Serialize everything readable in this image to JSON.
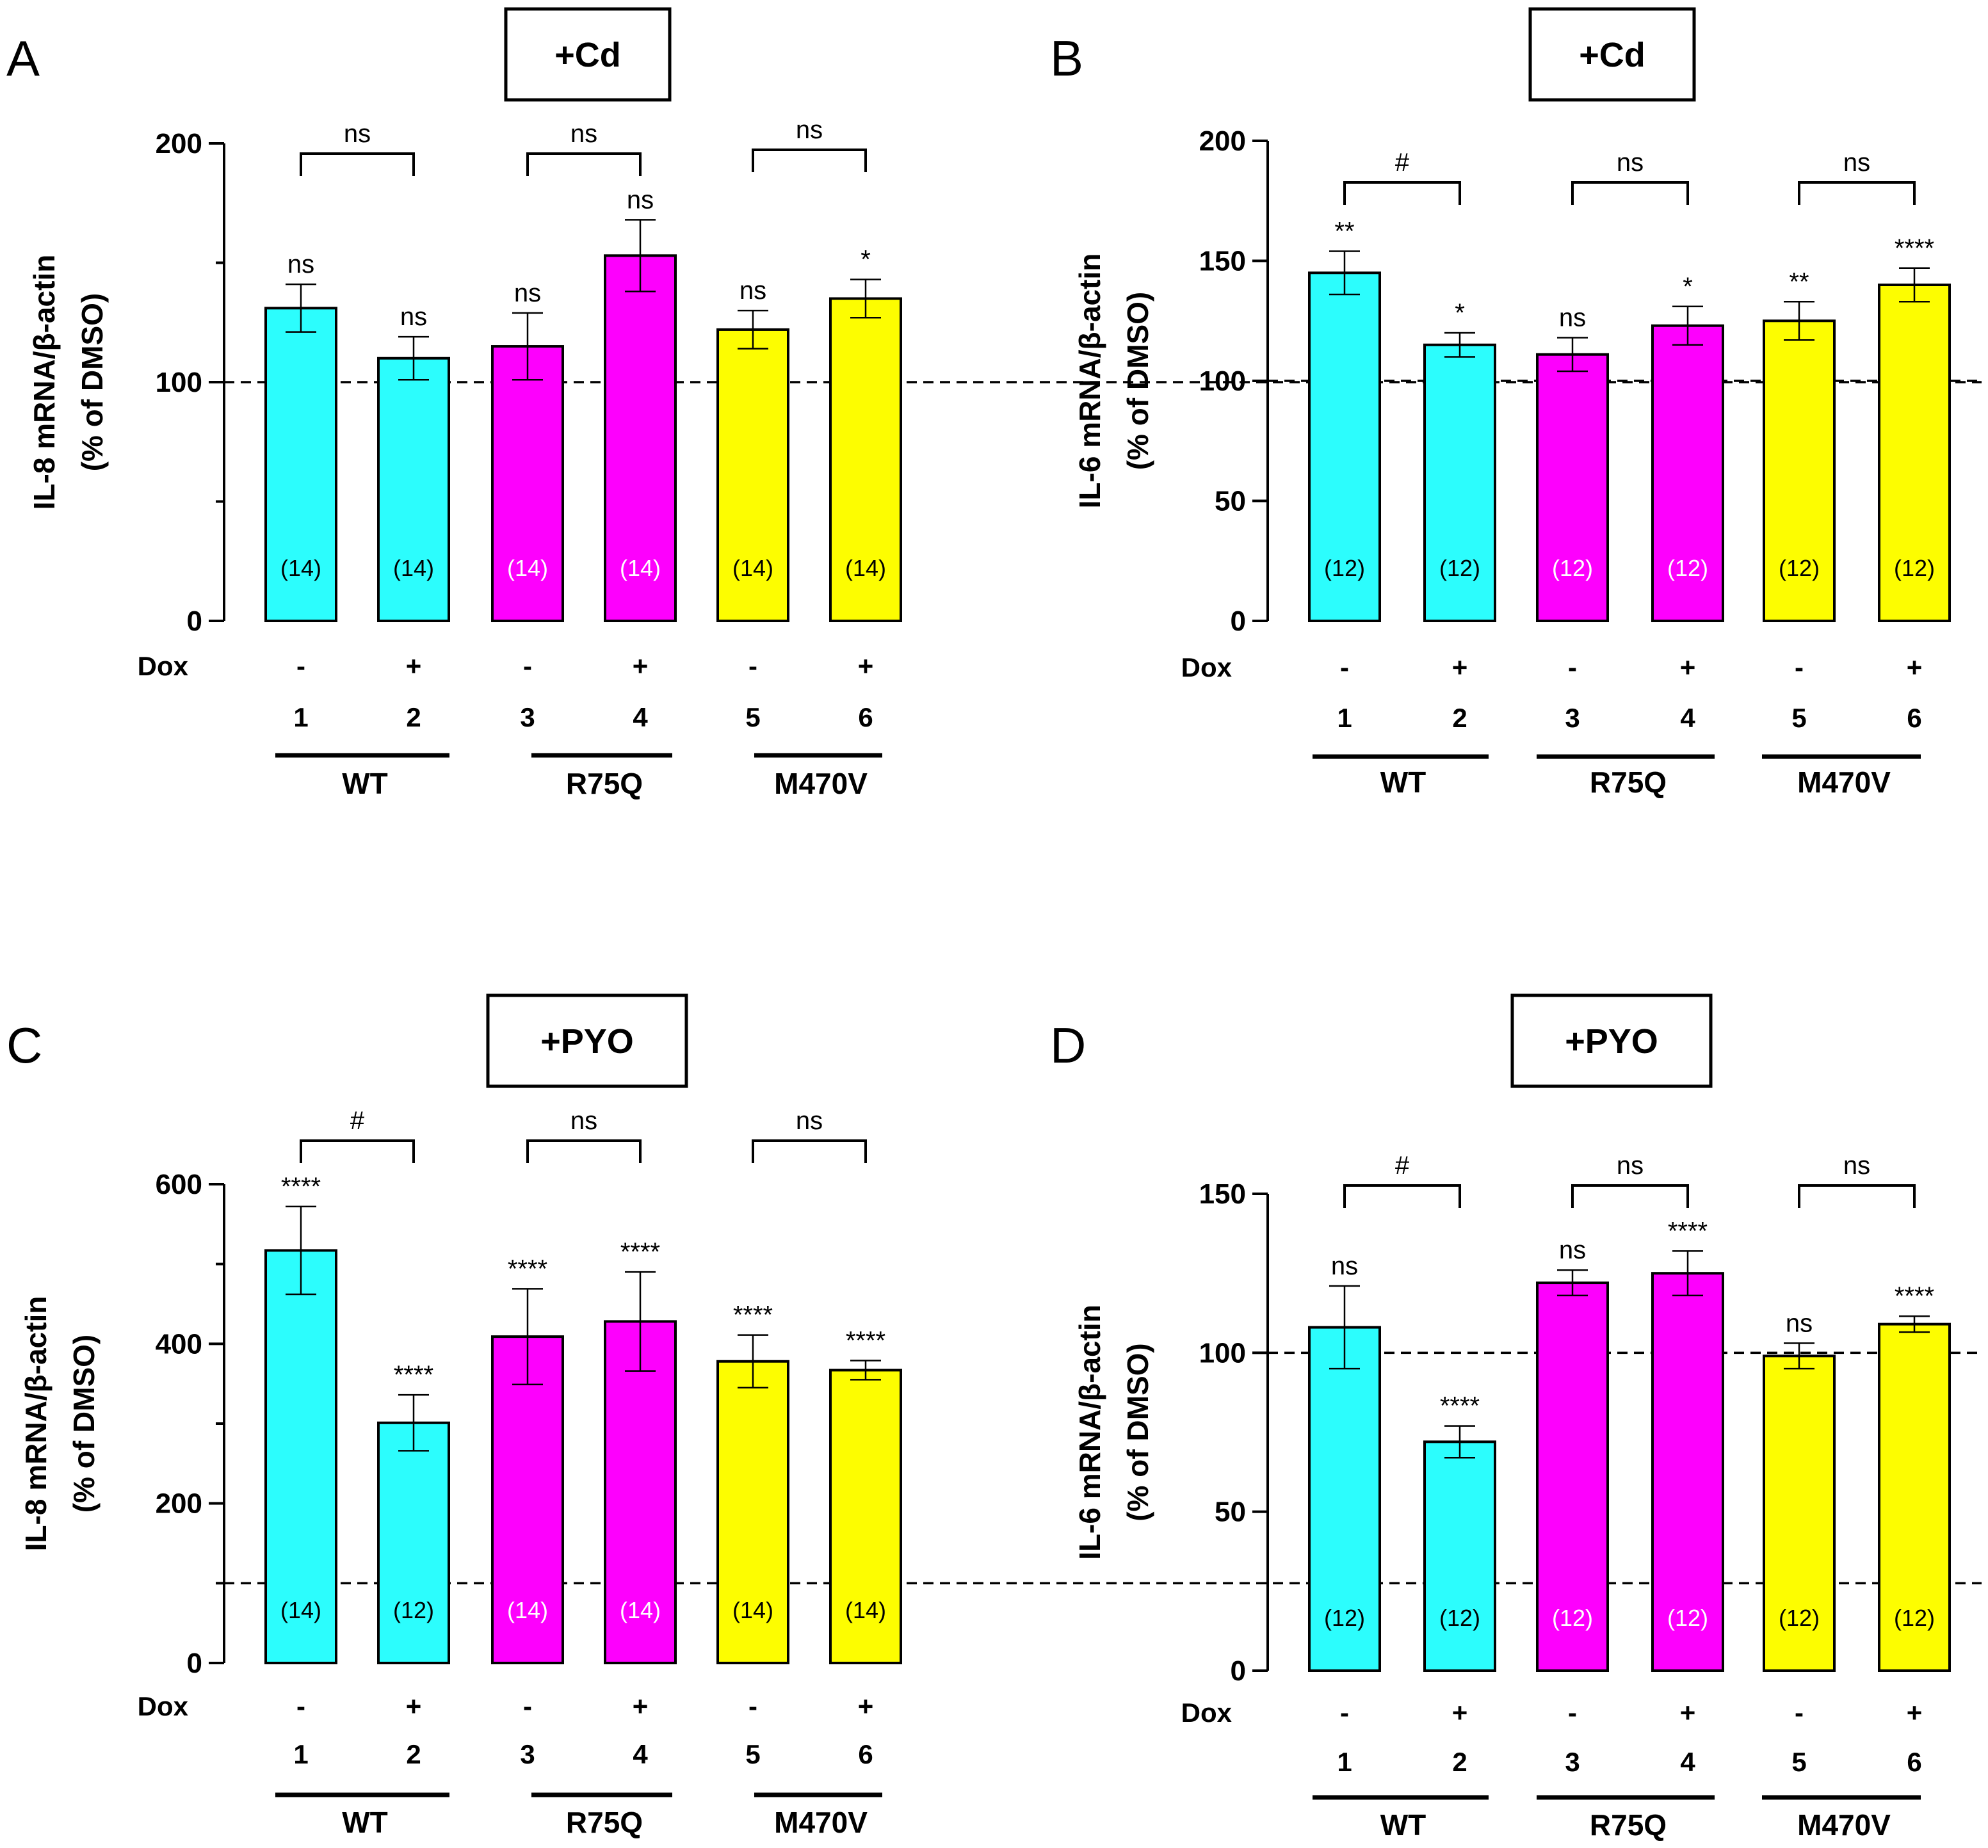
{
  "dox_label": "Dox",
  "groups": [
    "WT",
    "R75Q",
    "M470V"
  ],
  "lanes": [
    "1",
    "2",
    "3",
    "4",
    "5",
    "6"
  ],
  "dox_signs": [
    "-",
    "+",
    "-",
    "+",
    "-",
    "+"
  ],
  "colors": [
    "#2cfdfd",
    "#2cfdfd",
    "#fd00fd",
    "#fd00fd",
    "#fdfd00",
    "#fdfd00"
  ],
  "n_label_colors": [
    "#000000",
    "#000000",
    "#ffffff",
    "#ffffff",
    "#000000",
    "#000000"
  ],
  "chart_data": [
    {
      "panel": "A",
      "treatment": "+Cd",
      "type": "bar",
      "ylabel": "IL-8 mRNA/β-actin",
      "ylabel2": "(% of DMSO)",
      "ylim": [
        0,
        200
      ],
      "yticks": [
        0,
        100,
        200
      ],
      "minor_ticks": [
        50,
        150
      ],
      "ref_line": 100,
      "values": [
        131,
        110,
        115,
        153,
        122,
        135
      ],
      "errors": [
        10,
        9,
        14,
        15,
        8,
        8
      ],
      "n": [
        "(14)",
        "(14)",
        "(14)",
        "(14)",
        "(14)",
        "(14)"
      ],
      "bar_sig": [
        "ns",
        "ns",
        "ns",
        "ns",
        "ns",
        "*"
      ],
      "pair_sig": [
        "ns",
        "ns",
        "ns"
      ]
    },
    {
      "panel": "B",
      "treatment": "+Cd",
      "type": "bar",
      "ylabel": "IL-6 mRNA/β-actin",
      "ylabel2": "(% of DMSO)",
      "ylim": [
        0,
        200
      ],
      "yticks": [
        0,
        50,
        100,
        150,
        200
      ],
      "minor_ticks": [],
      "ref_line": 100,
      "values": [
        145,
        115,
        111,
        123,
        125,
        140
      ],
      "errors": [
        9,
        5,
        7,
        8,
        8,
        7
      ],
      "n": [
        "(12)",
        "(12)",
        "(12)",
        "(12)",
        "(12)",
        "(12)"
      ],
      "bar_sig": [
        "**",
        "*",
        "ns",
        "*",
        "**",
        "****"
      ],
      "pair_sig": [
        "#",
        "ns",
        "ns"
      ]
    },
    {
      "panel": "C",
      "treatment": "+PYO",
      "type": "bar",
      "ylabel": "IL-8 mRNA/β-actin",
      "ylabel2": "(% of DMSO)",
      "ylim": [
        0,
        600
      ],
      "yticks": [
        0,
        200,
        400,
        600
      ],
      "minor_ticks": [
        100,
        300,
        500
      ],
      "ref_line": 100,
      "values": [
        517,
        301,
        409,
        428,
        378,
        367
      ],
      "errors": [
        55,
        35,
        60,
        62,
        33,
        12
      ],
      "n": [
        "(14)",
        "(12)",
        "(14)",
        "(14)",
        "(14)",
        "(14)"
      ],
      "bar_sig": [
        "****",
        "****",
        "****",
        "****",
        "****",
        "****"
      ],
      "pair_sig": [
        "#",
        "ns",
        "ns"
      ]
    },
    {
      "panel": "D",
      "treatment": "+PYO",
      "type": "bar",
      "ylabel": "IL-6 mRNA/β-actin",
      "ylabel2": "(% of DMSO)",
      "ylim": [
        0,
        150
      ],
      "yticks": [
        0,
        50,
        100,
        150
      ],
      "minor_ticks": [],
      "ref_line": 100,
      "values": [
        108,
        72,
        122,
        125,
        99,
        109
      ],
      "errors": [
        13,
        5,
        4,
        7,
        4,
        2.5
      ],
      "n": [
        "(12)",
        "(12)",
        "(12)",
        "(12)",
        "(12)",
        "(12)"
      ],
      "bar_sig": [
        "ns",
        "****",
        "ns",
        "****",
        "ns",
        "****"
      ],
      "pair_sig": [
        "#",
        "ns",
        "ns"
      ]
    }
  ]
}
